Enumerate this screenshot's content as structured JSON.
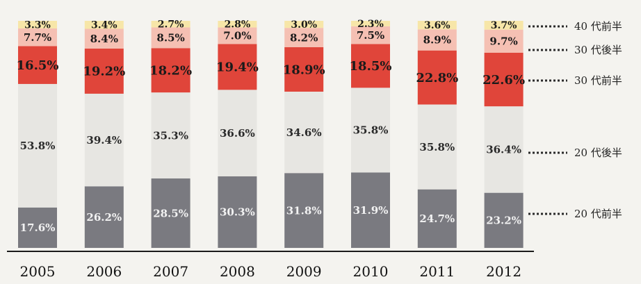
{
  "chart_data": {
    "type": "bar",
    "stacked": true,
    "percent": true,
    "categories": [
      "2005",
      "2006",
      "2007",
      "2008",
      "2009",
      "2010",
      "2011",
      "2012"
    ],
    "series": [
      {
        "name": "20 代前半",
        "color": "#7a7a80",
        "text_color": "#f2f2f2",
        "font_size": 15,
        "values": [
          17.6,
          26.2,
          28.5,
          30.3,
          31.8,
          31.9,
          24.7,
          23.2
        ]
      },
      {
        "name": "20 代後半",
        "color": "#e7e6e2",
        "text_color": "#2a2a2a",
        "font_size": 15,
        "values": [
          53.8,
          39.4,
          35.3,
          36.6,
          34.6,
          35.8,
          35.8,
          36.4
        ]
      },
      {
        "name": "30 代前半",
        "color": "#e0453a",
        "text_color": "#1a1a1a",
        "font_size": 18,
        "values": [
          16.5,
          19.2,
          18.2,
          19.4,
          18.9,
          18.5,
          22.8,
          22.6
        ]
      },
      {
        "name": "30 代後半",
        "color": "#f5c0b3",
        "text_color": "#1a1a1a",
        "font_size": 15,
        "values": [
          7.7,
          8.4,
          8.5,
          7.0,
          8.2,
          7.5,
          8.9,
          9.7
        ]
      },
      {
        "name": "40 代前半",
        "color": "#f7e6a8",
        "text_color": "#1a1a1a",
        "font_size": 14,
        "values": [
          3.3,
          3.4,
          2.7,
          2.8,
          3.0,
          2.3,
          3.6,
          3.7
        ]
      }
    ],
    "value_format": "{v}%",
    "legend_position": "right"
  }
}
